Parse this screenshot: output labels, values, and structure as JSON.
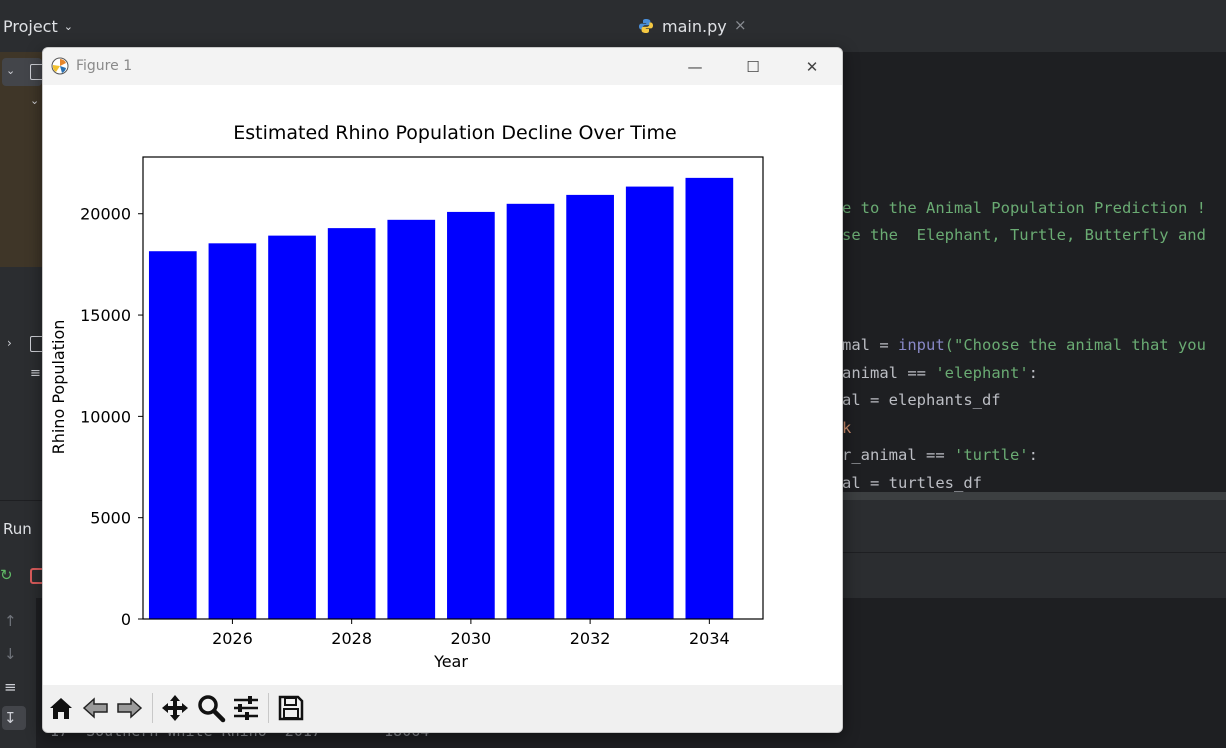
{
  "ide": {
    "project_label": "Project",
    "run_label": "Run",
    "tab": {
      "label": "main.py",
      "close": "×"
    },
    "code_lines": [
      {
        "text": "e to the Animal Population Prediction !",
        "kind": "str"
      },
      {
        "text": "se the  Elephant, Turtle, Butterfly and",
        "kind": "str"
      },
      {
        "prefix": "mal = ",
        "fn": "input",
        "suffix": "(\"Choose the animal that you"
      },
      {
        "prefix": "animal == ",
        "str": "'elephant'",
        "suffix": ":"
      },
      {
        "text": "al = elephants_df",
        "kind": "plain"
      },
      {
        "text": "k",
        "kind": "kw"
      },
      {
        "prefix": "r_animal == ",
        "str": "'turtle'",
        "suffix": ":"
      },
      {
        "text": "al = turtles_df",
        "kind": "plain"
      }
    ],
    "console_text": "17  Southern White Rhino  2017       18064"
  },
  "figure": {
    "window_title": "Figure 1",
    "controls": {
      "minimize": "—",
      "maximize": "☐",
      "close": "✕"
    },
    "toolbar": [
      "home-icon",
      "back-icon",
      "forward-icon",
      "pan-icon",
      "zoom-icon",
      "configure-icon",
      "save-icon"
    ]
  },
  "chart_data": {
    "type": "bar",
    "title": "Estimated Rhino Population Decline Over Time",
    "xlabel": "Year",
    "ylabel": "Rhino Population",
    "x": [
      2025,
      2026,
      2027,
      2028,
      2029,
      2030,
      2031,
      2032,
      2033,
      2034
    ],
    "values": [
      18150,
      18540,
      18920,
      19290,
      19700,
      20090,
      20490,
      20930,
      21340,
      21770
    ],
    "xlim": [
      2024.5,
      2034.9
    ],
    "ylim": [
      0,
      22800
    ],
    "xticks": [
      2026,
      2028,
      2030,
      2032,
      2034
    ],
    "yticks": [
      0,
      5000,
      10000,
      15000,
      20000
    ],
    "bar_color": "#0000ff",
    "grid": false
  }
}
